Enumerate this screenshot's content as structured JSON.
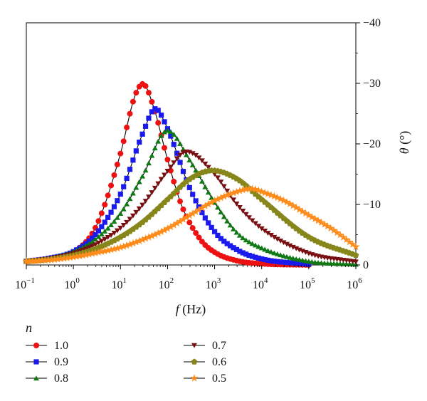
{
  "chart_data": {
    "type": "scatter",
    "xlabel_var": "f",
    "xlabel_unit": " (Hz)",
    "ylabel_var": "θ",
    "ylabel_unit": " (°)",
    "x_scale": "log",
    "x_ticks": [
      0.1,
      1,
      10,
      100,
      1000,
      10000,
      100000,
      1000000
    ],
    "x_tick_base": [
      "10",
      "10",
      "10",
      "10",
      "10",
      "10",
      "10",
      "10"
    ],
    "x_tick_exp": [
      "−1",
      "0",
      "1",
      "2",
      "3",
      "4",
      "5",
      "6"
    ],
    "xlim": [
      0.1,
      1000000
    ],
    "ylim": [
      0,
      -40
    ],
    "y_ticks": [
      0,
      -10,
      -20,
      -30,
      -40
    ],
    "y_tick_labels": [
      "0",
      "−10",
      "−20",
      "−30",
      "−40"
    ],
    "y_axis_side": "right",
    "y_inverted": true,
    "grid": false,
    "legend": {
      "title": "n",
      "position": "bottom-left",
      "entries": [
        "1.0",
        "0.9",
        "0.8",
        "0.7",
        "0.6",
        "0.5"
      ]
    },
    "series": [
      {
        "name": "1.0",
        "color": "#ee1111",
        "marker": "circle",
        "x": [
          0.1,
          0.3,
          1,
          3,
          10,
          20,
          30,
          50,
          100,
          200,
          500,
          1000,
          3000,
          10000,
          100000
        ],
        "y": [
          -0.6,
          -1.0,
          -2.1,
          -6.3,
          -18.4,
          -27.8,
          -29.9,
          -26.2,
          -17.4,
          -9.8,
          -4.2,
          -2.1,
          -0.7,
          -0.2,
          0
        ]
      },
      {
        "name": "0.9",
        "color": "#1a1aee",
        "marker": "square",
        "x": [
          0.1,
          0.3,
          1,
          3,
          10,
          30,
          55,
          100,
          300,
          1000,
          3000,
          10000,
          100000
        ],
        "y": [
          -0.6,
          -1.1,
          -2.2,
          -5.1,
          -11.7,
          -21.8,
          -25.8,
          -22.5,
          -12.6,
          -5.5,
          -2.5,
          -1.0,
          -0.1
        ]
      },
      {
        "name": "0.8",
        "color": "#0f7a14",
        "marker": "triangle-up",
        "x": [
          0.1,
          0.3,
          1,
          3,
          10,
          30,
          100,
          300,
          1000,
          3000,
          10000,
          100000,
          1000000
        ],
        "y": [
          -0.6,
          -1.1,
          -2.2,
          -4.3,
          -8.5,
          -14.8,
          -22.2,
          -17.2,
          -10.3,
          -5.3,
          -2.8,
          -0.6,
          -0.1
        ]
      },
      {
        "name": "0.7",
        "color": "#7a0f12",
        "marker": "triangle-down",
        "x": [
          0.1,
          0.3,
          1,
          3,
          10,
          30,
          100,
          250,
          1000,
          3000,
          10000,
          100000,
          1000000
        ],
        "y": [
          -0.6,
          -1.0,
          -1.9,
          -3.4,
          -6.1,
          -10.0,
          -15.5,
          -18.7,
          -15.0,
          -10.0,
          -6.0,
          -1.9,
          -0.5
        ]
      },
      {
        "name": "0.6",
        "color": "#87861a",
        "marker": "pentagon",
        "x": [
          0.1,
          0.3,
          1,
          3,
          10,
          30,
          100,
          300,
          900,
          3000,
          10000,
          100000,
          1000000
        ],
        "y": [
          -0.6,
          -0.9,
          -1.6,
          -2.7,
          -4.6,
          -7.1,
          -10.8,
          -14.2,
          -15.6,
          -14.2,
          -10.8,
          -4.6,
          -1.6
        ]
      },
      {
        "name": "0.5",
        "color": "#ff8c1a",
        "marker": "star",
        "x": [
          0.1,
          0.3,
          1,
          3,
          10,
          30,
          100,
          300,
          1000,
          3000,
          6000,
          10000,
          30000,
          100000,
          300000,
          1000000
        ],
        "y": [
          -0.6,
          -0.8,
          -1.3,
          -2.0,
          -2.9,
          -4.2,
          -6.0,
          -8.2,
          -10.6,
          -12.1,
          -12.6,
          -12.1,
          -10.6,
          -8.2,
          -6.0,
          -3.0
        ]
      }
    ]
  }
}
